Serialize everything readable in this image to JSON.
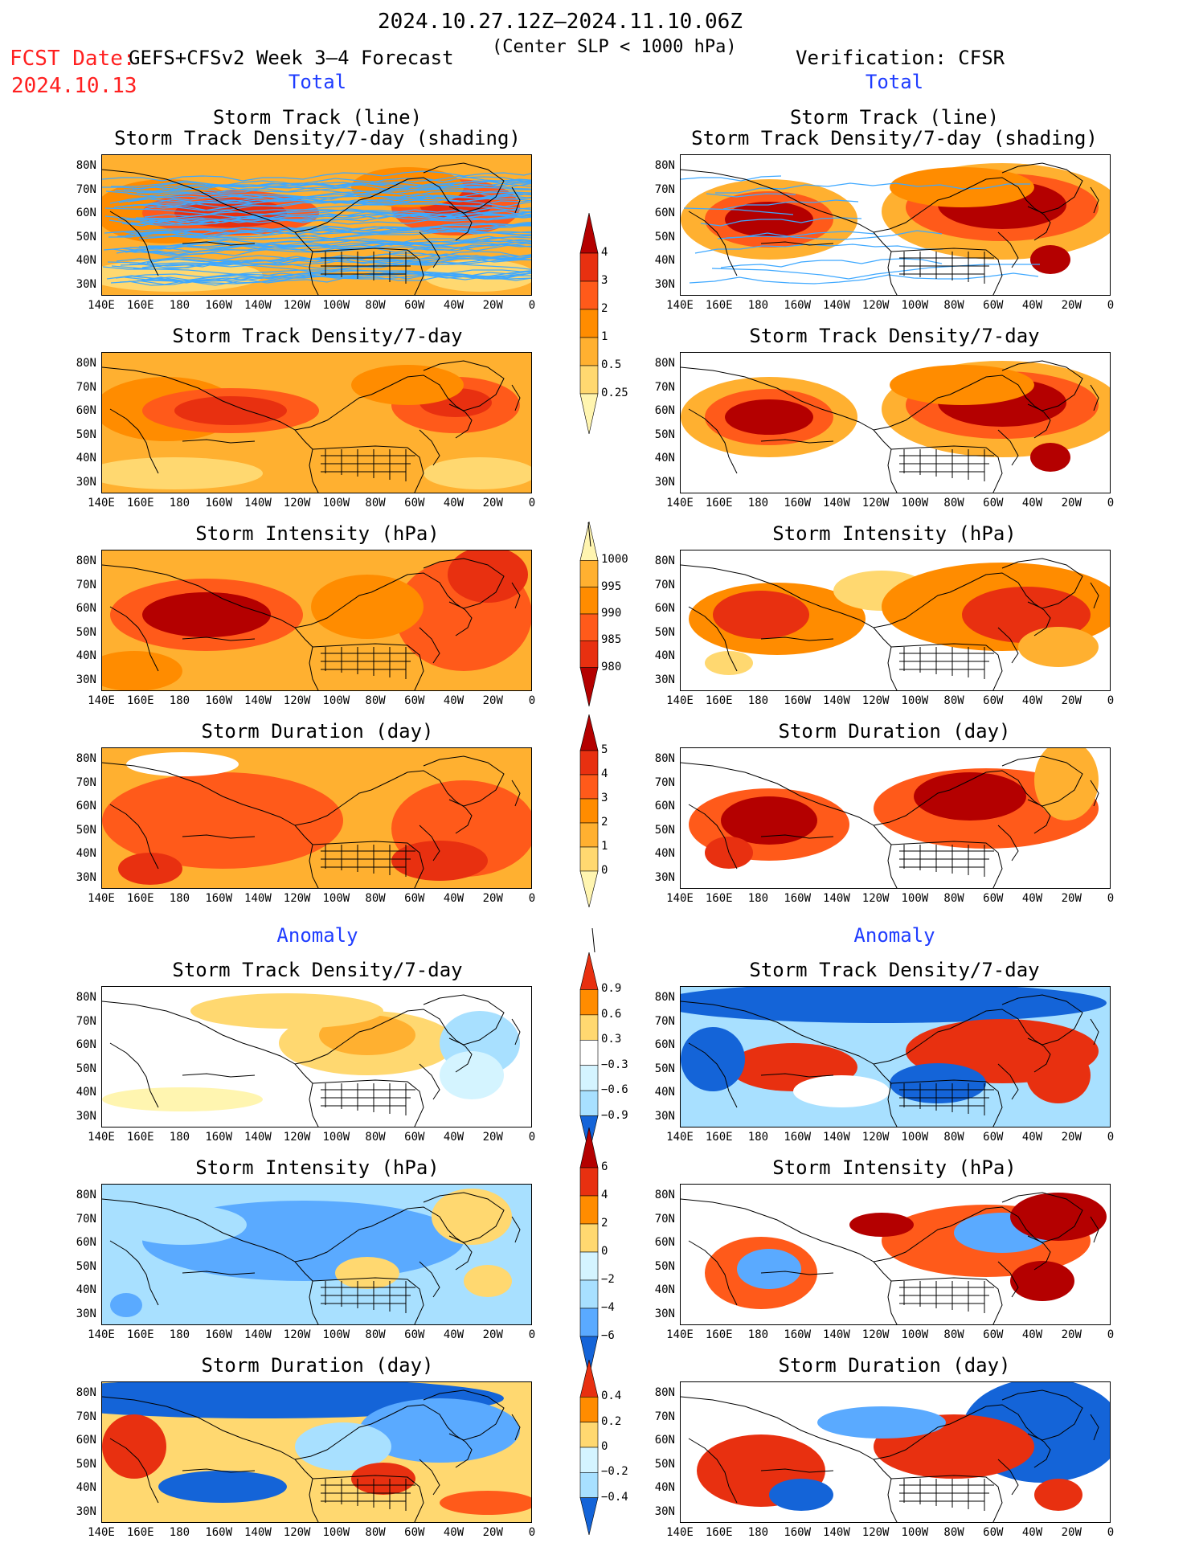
{
  "header": {
    "period": "2024.10.27.12Z–2024.11.10.06Z",
    "criterion": "(Center SLP < 1000 hPa)",
    "fcst_label": "FCST Date:",
    "fcst_date": "2024.10.13",
    "model": "GEFS+CFSv2 Week 3–4 Forecast",
    "verification": "Verification: CFSR"
  },
  "sections": {
    "total": "Total",
    "anomaly": "Anomaly"
  },
  "panel_titles": {
    "track_line": "Storm Track (line)",
    "track_density_shading": "Storm Track Density/7-day (shading)",
    "track_density": "Storm Track Density/7-day",
    "intensity": "Storm Intensity (hPa)",
    "duration": "Storm Duration (day)"
  },
  "axes": {
    "lat_labels": [
      "80N",
      "70N",
      "60N",
      "50N",
      "40N",
      "30N"
    ],
    "lon_labels": [
      "140E",
      "160E",
      "180",
      "160W",
      "140W",
      "120W",
      "100W",
      "80W",
      "60W",
      "40W",
      "20W",
      "0"
    ]
  },
  "colorbars": {
    "density_total": [
      "4",
      "3",
      "2",
      "1",
      "0.5",
      "0.25"
    ],
    "intensity_total": [
      "1000",
      "995",
      "990",
      "985",
      "980"
    ],
    "duration_total": [
      "5",
      "4",
      "3",
      "2",
      "1",
      "0"
    ],
    "density_anom": [
      "0.9",
      "0.6",
      "0.3",
      "−0.3",
      "−0.6",
      "−0.9"
    ],
    "intensity_anom": [
      "6",
      "4",
      "2",
      "0",
      "−2",
      "−4",
      "−6"
    ],
    "duration_anom": [
      "0.4",
      "0.2",
      "0",
      "−0.2",
      "−0.4"
    ]
  },
  "palette": {
    "pos": [
      "#fff5b0",
      "#ffd870",
      "#ffb030",
      "#ff8c00",
      "#ff5a1a",
      "#e83010",
      "#b40000"
    ],
    "neg": [
      "#d4f4ff",
      "#a8e0ff",
      "#5aaaff",
      "#1464d8"
    ],
    "track": "#3ea8ff"
  }
}
